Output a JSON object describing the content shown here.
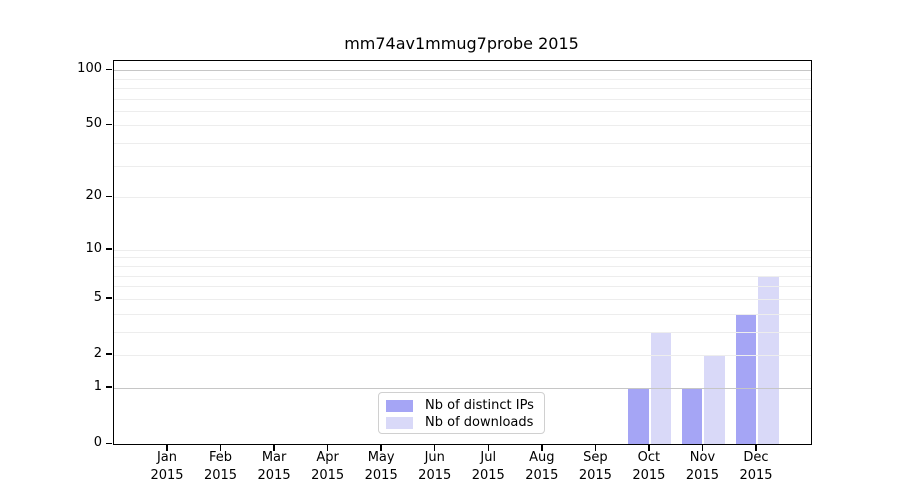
{
  "chart_data": {
    "type": "bar",
    "title": "mm74av1mmug7probe 2015",
    "categories": [
      "Jan",
      "Feb",
      "Mar",
      "Apr",
      "May",
      "Jun",
      "Jul",
      "Aug",
      "Sep",
      "Oct",
      "Nov",
      "Dec"
    ],
    "category_year": "2015",
    "series": [
      {
        "name": "Nb of distinct IPs",
        "color": "#a5a5f5",
        "values": [
          0,
          0,
          0,
          0,
          0,
          0,
          0,
          0,
          0,
          1,
          1,
          4
        ]
      },
      {
        "name": "Nb of downloads",
        "color": "#d9d9f8",
        "values": [
          0,
          0,
          0,
          0,
          0,
          0,
          0,
          0,
          0,
          3,
          2,
          7
        ]
      }
    ],
    "xlabel": "",
    "ylabel": "",
    "yscale": "log1p",
    "ylim": [
      0,
      112
    ],
    "ytick_values": [
      0,
      1,
      2,
      5,
      10,
      20,
      50,
      100
    ],
    "ytick_labels": [
      "0",
      "1",
      "2",
      "5",
      "10",
      "20",
      "50",
      "100"
    ],
    "grid": true,
    "gridline_values": [
      1,
      2,
      3,
      4,
      5,
      6,
      7,
      8,
      9,
      10,
      20,
      30,
      40,
      50,
      60,
      70,
      80,
      90,
      100
    ],
    "grid_color": "#ededed",
    "grid_emphasis_values": [
      1,
      100
    ],
    "grid_emphasis_color": "#c6c6c6",
    "legend_position": "lower-center"
  }
}
